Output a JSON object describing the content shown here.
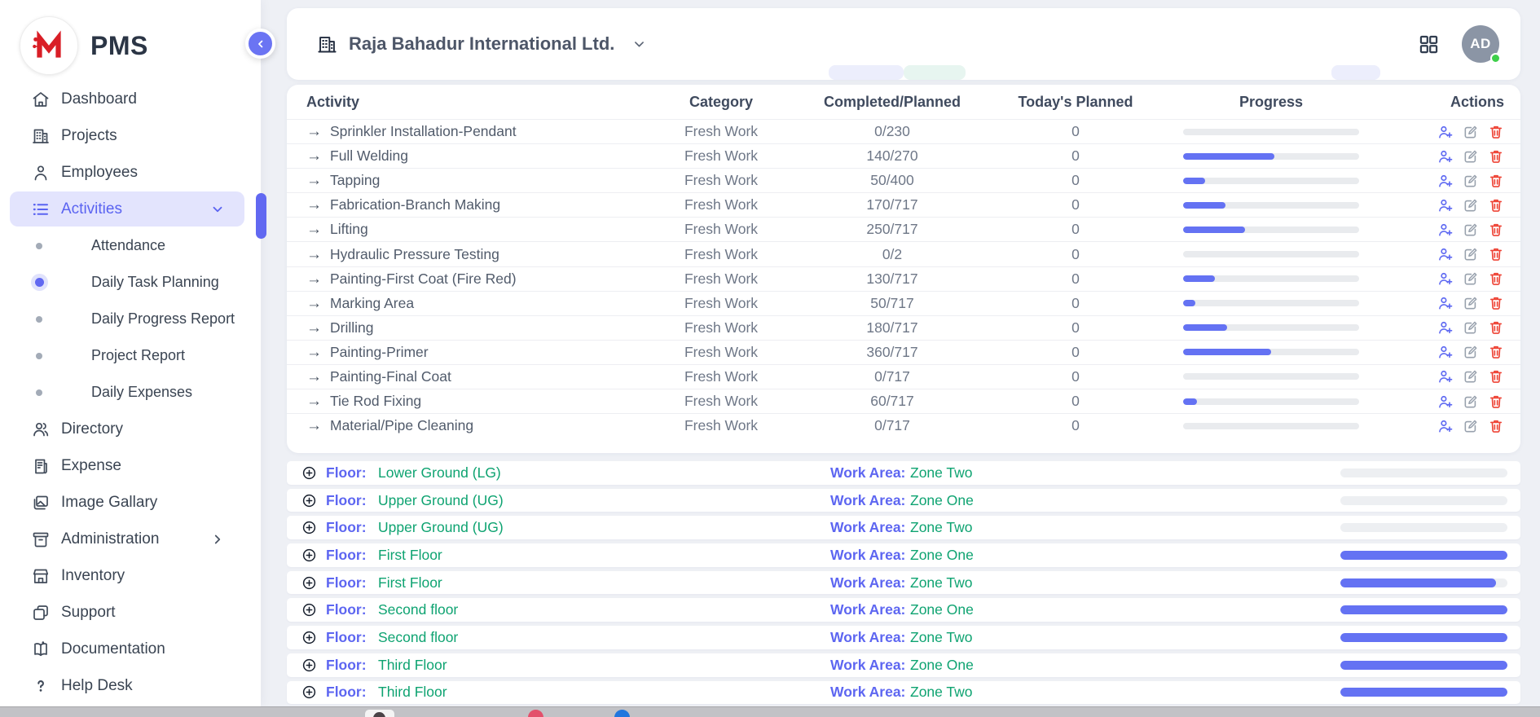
{
  "app": {
    "name": "PMS"
  },
  "colors": {
    "accent": "#6168f1",
    "accent_light": "#e3e4fd",
    "progress_fill": "#6472f3",
    "floor_value_green": "#0ea371",
    "delete_red": "#ee4436",
    "edit_gray": "#98a1ad",
    "avatar_bg": "#8b95a5",
    "online_green": "#3ecf4a"
  },
  "sidebar": {
    "items": [
      {
        "type": "item",
        "icon": "home",
        "label": "Dashboard"
      },
      {
        "type": "item",
        "icon": "building",
        "label": "Projects"
      },
      {
        "type": "item",
        "icon": "person",
        "label": "Employees"
      },
      {
        "type": "item",
        "icon": "list",
        "label": "Activities",
        "active": true,
        "chevron": "down"
      },
      {
        "type": "sub",
        "label": "Attendance"
      },
      {
        "type": "sub",
        "label": "Daily Task Planning",
        "active": true
      },
      {
        "type": "sub",
        "label": "Daily Progress Report"
      },
      {
        "type": "sub",
        "label": "Project Report"
      },
      {
        "type": "sub",
        "label": "Daily Expenses"
      },
      {
        "type": "item",
        "icon": "people",
        "label": "Directory"
      },
      {
        "type": "item",
        "icon": "receipt",
        "label": "Expense"
      },
      {
        "type": "item",
        "icon": "image",
        "label": "Image Gallary"
      },
      {
        "type": "item",
        "icon": "archive",
        "label": "Administration",
        "chevron": "right"
      },
      {
        "type": "item",
        "icon": "store",
        "label": "Inventory"
      },
      {
        "type": "item",
        "icon": "squares",
        "label": "Support"
      },
      {
        "type": "item",
        "icon": "book",
        "label": "Documentation"
      },
      {
        "type": "item",
        "icon": "question",
        "label": "Help Desk"
      }
    ]
  },
  "header": {
    "company": "Raja Bahadur International Ltd.",
    "avatar_initials": "AD"
  },
  "table": {
    "columns": [
      "Activity",
      "Category",
      "Completed/Planned",
      "Today's Planned",
      "Progress",
      "Actions"
    ],
    "rows": [
      {
        "activity": "Sprinkler Installation-Pendant",
        "category": "Fresh Work",
        "completed_planned": "0/230",
        "todays_planned": "0",
        "progress_pct": 0
      },
      {
        "activity": "Full Welding",
        "category": "Fresh Work",
        "completed_planned": "140/270",
        "todays_planned": "0",
        "progress_pct": 52
      },
      {
        "activity": "Tapping",
        "category": "Fresh Work",
        "completed_planned": "50/400",
        "todays_planned": "0",
        "progress_pct": 12.5
      },
      {
        "activity": "Fabrication-Branch Making",
        "category": "Fresh Work",
        "completed_planned": "170/717",
        "todays_planned": "0",
        "progress_pct": 24
      },
      {
        "activity": "Lifting",
        "category": "Fresh Work",
        "completed_planned": "250/717",
        "todays_planned": "0",
        "progress_pct": 35
      },
      {
        "activity": "Hydraulic Pressure Testing",
        "category": "Fresh Work",
        "completed_planned": "0/2",
        "todays_planned": "0",
        "progress_pct": 0
      },
      {
        "activity": "Painting-First Coat (Fire Red)",
        "category": "Fresh Work",
        "completed_planned": "130/717",
        "todays_planned": "0",
        "progress_pct": 18
      },
      {
        "activity": "Marking Area",
        "category": "Fresh Work",
        "completed_planned": "50/717",
        "todays_planned": "0",
        "progress_pct": 7
      },
      {
        "activity": "Drilling",
        "category": "Fresh Work",
        "completed_planned": "180/717",
        "todays_planned": "0",
        "progress_pct": 25
      },
      {
        "activity": "Painting-Primer",
        "category": "Fresh Work",
        "completed_planned": "360/717",
        "todays_planned": "0",
        "progress_pct": 50
      },
      {
        "activity": "Painting-Final Coat",
        "category": "Fresh Work",
        "completed_planned": "0/717",
        "todays_planned": "0",
        "progress_pct": 0
      },
      {
        "activity": "Tie Rod Fixing",
        "category": "Fresh Work",
        "completed_planned": "60/717",
        "todays_planned": "0",
        "progress_pct": 8
      },
      {
        "activity": "Material/Pipe Cleaning",
        "category": "Fresh Work",
        "completed_planned": "0/717",
        "todays_planned": "0",
        "progress_pct": 0
      }
    ]
  },
  "floors": {
    "floor_label": "Floor:",
    "work_area_label": "Work Area:",
    "rows": [
      {
        "floor": "Lower Ground (LG)",
        "work_area": "Zone Two",
        "progress_pct": 0
      },
      {
        "floor": "Upper Ground (UG)",
        "work_area": "Zone One",
        "progress_pct": 0
      },
      {
        "floor": "Upper Ground (UG)",
        "work_area": "Zone Two",
        "progress_pct": 0
      },
      {
        "floor": "First Floor",
        "work_area": "Zone One",
        "progress_pct": 100
      },
      {
        "floor": "First Floor",
        "work_area": "Zone Two",
        "progress_pct": 93
      },
      {
        "floor": "Second floor",
        "work_area": "Zone One",
        "progress_pct": 100
      },
      {
        "floor": "Second floor",
        "work_area": "Zone Two",
        "progress_pct": 100
      },
      {
        "floor": "Third Floor",
        "work_area": "Zone One",
        "progress_pct": 100
      },
      {
        "floor": "Third Floor",
        "work_area": "Zone Two",
        "progress_pct": 100
      }
    ]
  }
}
